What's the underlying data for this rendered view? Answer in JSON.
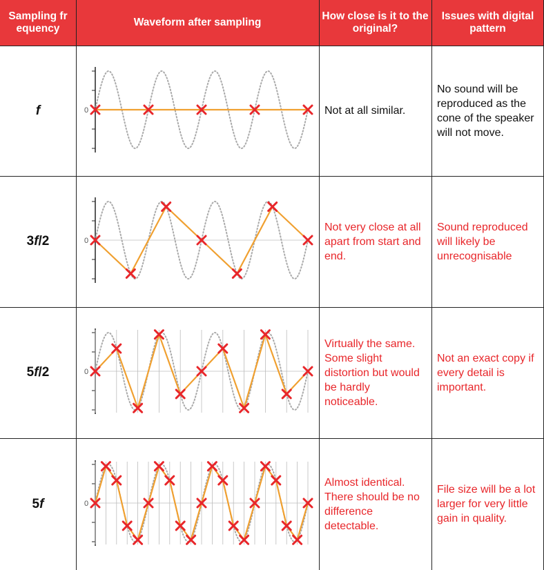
{
  "header": {
    "col1": "Sampling frequency",
    "col2": "Waveform after sampling",
    "col3": "How close is it to the original?",
    "col4": "Issues with digital pattern"
  },
  "colors": {
    "header_bg": "#e8383b",
    "samples_line": "#f0a030",
    "marker": "#e8262a",
    "original_wave": "#aaaaaa"
  },
  "rows": [
    {
      "freq_base": "",
      "freq_sym": "f",
      "freq_tail": "",
      "zero_label": "0",
      "samples_per_cycle": 1,
      "closeness": "Not at all similar.",
      "closeness_color": "black",
      "issues": "No sound will be reproduced as the cone of the speaker will not move.",
      "issues_color": "black"
    },
    {
      "freq_base": "3",
      "freq_sym": "f",
      "freq_tail": "/2",
      "zero_label": "0",
      "samples_per_cycle": 1.5,
      "closeness": "Not very close at all apart from start and end.",
      "closeness_color": "red",
      "issues": "Sound reproduced will likely be unrecognisable",
      "issues_color": "red"
    },
    {
      "freq_base": "5",
      "freq_sym": "f",
      "freq_tail": "/2",
      "zero_label": "0",
      "samples_per_cycle": 2.5,
      "closeness": "Virtually the same. Some slight distortion but would be hardly noticeable.",
      "closeness_color": "red",
      "issues": "Not an exact copy if every detail is important.",
      "issues_color": "red"
    },
    {
      "freq_base": "5",
      "freq_sym": "f",
      "freq_tail": "",
      "zero_label": "0",
      "samples_per_cycle": 5,
      "closeness": "Almost identical. There should be no difference detectable.",
      "closeness_color": "red",
      "issues": "File size will be a lot larger for very little gain in quality.",
      "issues_color": "red"
    }
  ],
  "cycles": 4
}
